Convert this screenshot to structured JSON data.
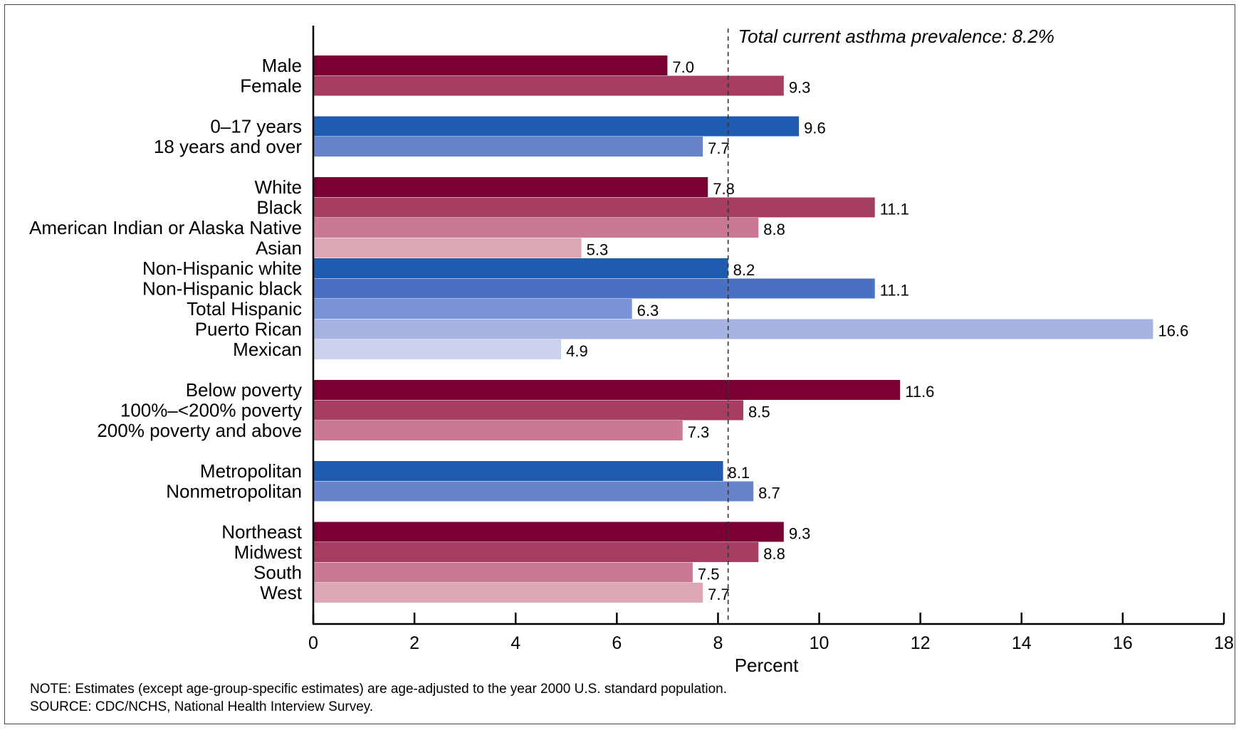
{
  "chart_data": {
    "type": "bar",
    "orientation": "horizontal",
    "xlabel": "Percent",
    "xlim": [
      0,
      18
    ],
    "xticks": [
      0,
      2,
      4,
      6,
      8,
      10,
      12,
      14,
      16,
      18
    ],
    "reference_line": {
      "value": 8.2,
      "label": "Total current asthma prevalence: 8.2%"
    },
    "groups": [
      {
        "bars": [
          {
            "label": "Male",
            "value": 7.0,
            "value_label": "7.0",
            "color": "#7a0034"
          },
          {
            "label": "Female",
            "value": 9.3,
            "value_label": "9.3",
            "color": "#a63d62"
          }
        ]
      },
      {
        "bars": [
          {
            "label": "0–17 years",
            "value": 9.6,
            "value_label": "9.6",
            "color": "#1f5bb0"
          },
          {
            "label": "18 years and over",
            "value": 7.7,
            "value_label": "7.7",
            "color": "#6683cc"
          }
        ]
      },
      {
        "bars": [
          {
            "label": "White",
            "value": 7.8,
            "value_label": "7.8",
            "color": "#7a0034"
          },
          {
            "label": "Black",
            "value": 11.1,
            "value_label": "11.1",
            "color": "#a63d62"
          },
          {
            "label": "American Indian or Alaska Native",
            "value": 8.8,
            "value_label": "8.8",
            "color": "#c97a92"
          },
          {
            "label": "Asian",
            "value": 5.3,
            "value_label": "5.3",
            "color": "#dda7b6"
          },
          {
            "label": "Non-Hispanic white",
            "value": 8.2,
            "value_label": "8.2",
            "color": "#1f5bb0"
          },
          {
            "label": "Non-Hispanic black",
            "value": 11.1,
            "value_label": "11.1",
            "color": "#4a70c4"
          },
          {
            "label": "Total Hispanic",
            "value": 6.3,
            "value_label": "6.3",
            "color": "#7a93d6"
          },
          {
            "label": "Puerto Rican",
            "value": 16.6,
            "value_label": "16.6",
            "color": "#a6b2e2"
          },
          {
            "label": "Mexican",
            "value": 4.9,
            "value_label": "4.9",
            "color": "#ccd2ee"
          }
        ]
      },
      {
        "bars": [
          {
            "label": "Below poverty",
            "value": 11.6,
            "value_label": "11.6",
            "color": "#7a0034"
          },
          {
            "label": "100%–<200% poverty",
            "value": 8.5,
            "value_label": "8.5",
            "color": "#a63d62"
          },
          {
            "label": "200% poverty and above",
            "value": 7.3,
            "value_label": "7.3",
            "color": "#c97a92"
          }
        ]
      },
      {
        "bars": [
          {
            "label": "Metropolitan",
            "value": 8.1,
            "value_label": "8.1",
            "color": "#1f5bb0"
          },
          {
            "label": "Nonmetropolitan",
            "value": 8.7,
            "value_label": "8.7",
            "color": "#6683cc"
          }
        ]
      },
      {
        "bars": [
          {
            "label": "Northeast",
            "value": 9.3,
            "value_label": "9.3",
            "color": "#7a0034"
          },
          {
            "label": "Midwest",
            "value": 8.8,
            "value_label": "8.8",
            "color": "#a63d62"
          },
          {
            "label": "South",
            "value": 7.5,
            "value_label": "7.5",
            "color": "#c97a92"
          },
          {
            "label": "West",
            "value": 7.7,
            "value_label": "7.7",
            "color": "#dda7b6"
          }
        ]
      }
    ]
  },
  "notes": {
    "note": "NOTE: Estimates (except age-group-specific estimates) are age-adjusted to the year 2000 U.S. standard population.",
    "source": "SOURCE: CDC/NCHS, National Health Interview Survey."
  }
}
